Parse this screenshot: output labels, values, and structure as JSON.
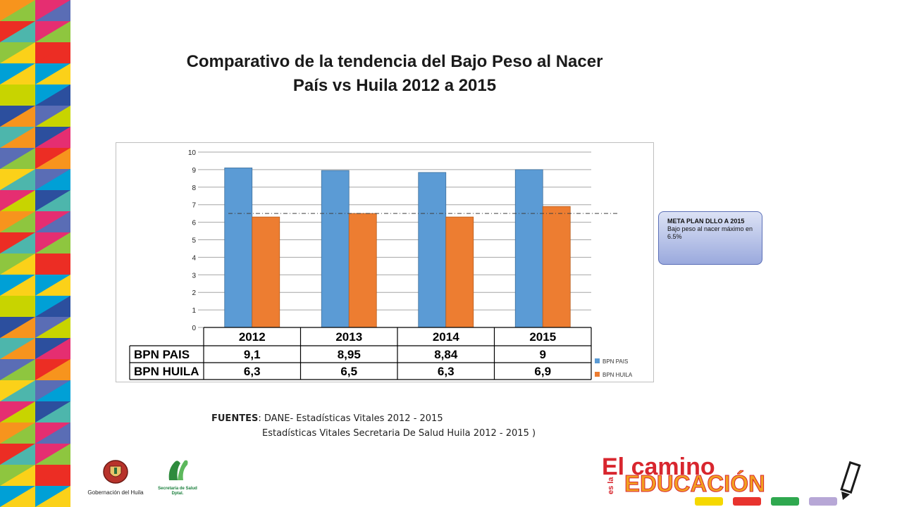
{
  "title": {
    "line1": "Comparativo de la tendencia del Bajo Peso al Nacer",
    "line2": "País vs Huila 2012  a 2015"
  },
  "goal_note": {
    "bold": "META PLAN DLLO  A 2015",
    "text": "Bajo peso al nacer máximo en  6.5%"
  },
  "sources": {
    "label": "FUENTES",
    "line1": ": DANE- Estadísticas Vitales 2012 - 2015",
    "line2": "Estadísticas Vitales Secretaria De Salud Huila 2012 - 2015 )"
  },
  "logos": {
    "gobernacion": "Gobernación del Huila",
    "secretaria_line1": "Secretaría de Salud",
    "secretaria_line2": "Dptal.",
    "brand_line1": "El camino",
    "brand_small": "es la",
    "brand_line2": "EDUCACIÓN"
  },
  "colors": {
    "pais": "#5b9bd5",
    "huila": "#ed7d31",
    "grid": "#a6a6a6",
    "goal_line": "#404040"
  },
  "chart_data": {
    "type": "bar",
    "categories": [
      "2012",
      "2013",
      "2014",
      "2015"
    ],
    "series": [
      {
        "name": "BPN PAIS",
        "values": [
          9.1,
          8.95,
          8.84,
          9
        ],
        "labels": [
          "9,1",
          "8,95",
          "8,84",
          "9"
        ]
      },
      {
        "name": "BPN HUILA",
        "values": [
          6.3,
          6.5,
          6.3,
          6.9
        ],
        "labels": [
          "6,3",
          "6,5",
          "6,3",
          "6,9"
        ]
      }
    ],
    "ylim": [
      0,
      10
    ],
    "yticks": [
      "0",
      "1",
      "2",
      "3",
      "4",
      "5",
      "6",
      "7",
      "8",
      "9",
      "10"
    ],
    "reference_line": 6.5,
    "grid": true,
    "legend_position": "right",
    "data_table": true,
    "title": "",
    "xlabel": "",
    "ylabel": ""
  }
}
